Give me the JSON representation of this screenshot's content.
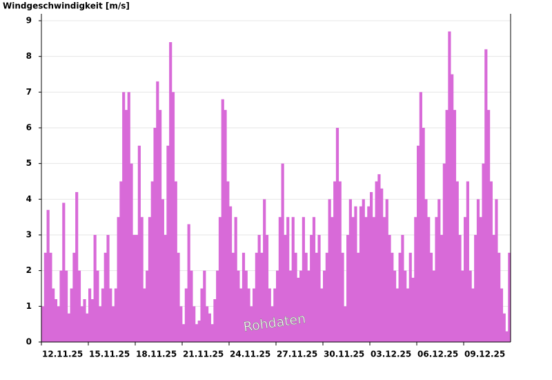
{
  "chart_data": {
    "type": "bar",
    "title": "Windgeschwindigkeit [m/s]",
    "annotation": "Rohdaten",
    "color": "#d86ad8",
    "grid": true,
    "ylim": [
      0,
      9
    ],
    "yticks": [
      0,
      1,
      2,
      3,
      4,
      5,
      6,
      7,
      8,
      9
    ],
    "xlim": [
      0,
      720
    ],
    "xticks": [
      {
        "value": 0,
        "label": "12.11.25"
      },
      {
        "value": 72,
        "label": "15.11.25"
      },
      {
        "value": 144,
        "label": "18.11.25"
      },
      {
        "value": 216,
        "label": "21.11.25"
      },
      {
        "value": 288,
        "label": "24.11.25"
      },
      {
        "value": 360,
        "label": "27.11.25"
      },
      {
        "value": 432,
        "label": "30.11.25"
      },
      {
        "value": 504,
        "label": "03.12.25"
      },
      {
        "value": 576,
        "label": "06.12.25"
      },
      {
        "value": 648,
        "label": "09.12.25"
      }
    ],
    "x": [
      0,
      4,
      8,
      12,
      16,
      20,
      24,
      28,
      32,
      36,
      40,
      44,
      48,
      52,
      56,
      60,
      64,
      68,
      72,
      76,
      80,
      84,
      88,
      92,
      96,
      100,
      104,
      108,
      112,
      116,
      120,
      124,
      128,
      132,
      136,
      140,
      144,
      148,
      152,
      156,
      160,
      164,
      168,
      172,
      176,
      180,
      184,
      188,
      192,
      196,
      200,
      204,
      208,
      212,
      216,
      220,
      224,
      228,
      232,
      236,
      240,
      244,
      248,
      252,
      256,
      260,
      264,
      268,
      272,
      276,
      280,
      284,
      288,
      292,
      296,
      300,
      304,
      308,
      312,
      316,
      320,
      324,
      328,
      332,
      336,
      340,
      344,
      348,
      352,
      356,
      360,
      364,
      368,
      372,
      376,
      380,
      384,
      388,
      392,
      396,
      400,
      404,
      408,
      412,
      416,
      420,
      424,
      428,
      432,
      436,
      440,
      444,
      448,
      452,
      456,
      460,
      464,
      468,
      472,
      476,
      480,
      484,
      488,
      492,
      496,
      500,
      504,
      508,
      512,
      516,
      520,
      524,
      528,
      532,
      536,
      540,
      544,
      548,
      552,
      556,
      560,
      564,
      568,
      572,
      576,
      580,
      584,
      588,
      592,
      596,
      600,
      604,
      608,
      612,
      616,
      620,
      624,
      628,
      632,
      636,
      640,
      644,
      648,
      652,
      656,
      660,
      664,
      668,
      672,
      676,
      680,
      684,
      688,
      692,
      696,
      700,
      704,
      708,
      712,
      716
    ],
    "values": [
      1.0,
      2.5,
      3.7,
      2.5,
      1.5,
      1.2,
      1.0,
      2.0,
      3.9,
      2.0,
      0.8,
      1.5,
      2.5,
      4.2,
      2.0,
      1.0,
      1.2,
      0.8,
      1.5,
      1.2,
      3.0,
      2.0,
      1.0,
      1.5,
      2.5,
      3.0,
      1.5,
      1.0,
      1.5,
      3.5,
      4.5,
      7.0,
      6.5,
      7.0,
      5.0,
      3.0,
      3.0,
      5.5,
      3.5,
      1.5,
      2.0,
      3.5,
      4.5,
      6.0,
      7.3,
      6.5,
      4.0,
      3.0,
      5.5,
      8.4,
      7.0,
      4.5,
      2.5,
      1.0,
      0.5,
      1.5,
      3.3,
      2.0,
      1.0,
      0.5,
      0.6,
      1.5,
      2.0,
      1.0,
      0.8,
      0.5,
      1.2,
      2.0,
      3.5,
      6.8,
      6.5,
      4.5,
      3.8,
      2.5,
      3.5,
      2.0,
      1.5,
      2.5,
      2.0,
      1.5,
      1.0,
      1.5,
      2.5,
      3.0,
      2.5,
      4.0,
      3.0,
      1.5,
      1.0,
      1.5,
      2.0,
      3.5,
      5.0,
      3.0,
      3.5,
      2.0,
      3.5,
      2.5,
      1.8,
      2.0,
      3.5,
      2.5,
      2.0,
      3.0,
      3.5,
      2.5,
      3.0,
      1.5,
      2.0,
      2.5,
      4.0,
      3.5,
      4.5,
      6.0,
      4.5,
      2.5,
      1.0,
      3.0,
      4.0,
      3.5,
      3.8,
      2.5,
      3.8,
      4.0,
      3.5,
      3.8,
      4.2,
      3.5,
      4.5,
      4.7,
      4.3,
      3.5,
      4.0,
      3.0,
      2.5,
      2.0,
      1.5,
      2.5,
      3.0,
      2.0,
      1.5,
      2.5,
      1.8,
      3.5,
      5.5,
      7.0,
      6.0,
      4.0,
      3.5,
      2.5,
      2.0,
      3.5,
      4.0,
      3.0,
      5.0,
      6.5,
      8.7,
      7.5,
      6.5,
      4.5,
      3.0,
      2.0,
      3.5,
      4.5,
      2.0,
      1.5,
      3.0,
      4.0,
      3.5,
      5.0,
      8.2,
      6.5,
      4.5,
      3.0,
      4.0,
      2.5,
      1.5,
      0.8,
      0.3,
      2.5
    ]
  }
}
